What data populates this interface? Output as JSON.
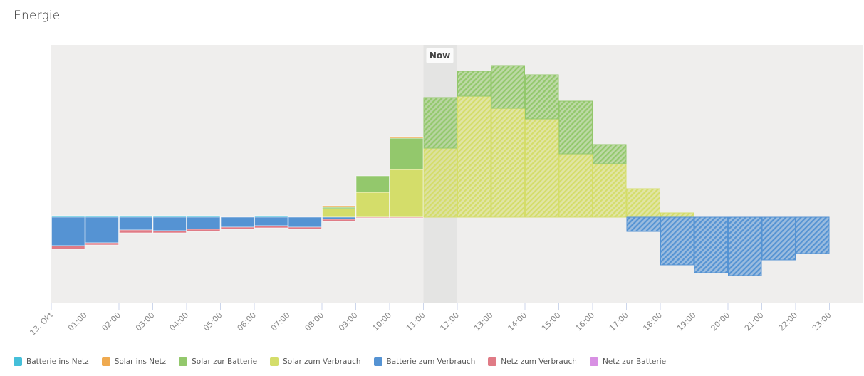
{
  "title": "Energie",
  "chart_data": {
    "type": "bar",
    "stacked": true,
    "title": "Energie",
    "xlabel": "",
    "ylabel": "",
    "grid": false,
    "legend_position": "bottom-left",
    "categories": [
      "13. Okt",
      "01:00",
      "02:00",
      "03:00",
      "04:00",
      "05:00",
      "06:00",
      "07:00",
      "08:00",
      "09:00",
      "10:00",
      "11:00",
      "12:00",
      "13:00",
      "14:00",
      "15:00",
      "16:00",
      "17:00",
      "18:00",
      "19:00",
      "20:00",
      "21:00",
      "22:00"
    ],
    "tick_labels": [
      "13. Okt",
      "01:00",
      "02:00",
      "03:00",
      "04:00",
      "05:00",
      "06:00",
      "07:00",
      "08:00",
      "09:00",
      "10:00",
      "11:00",
      "12:00",
      "13:00",
      "14:00",
      "15:00",
      "16:00",
      "17:00",
      "18:00",
      "19:00",
      "20:00",
      "21:00",
      "22:00",
      "23:00"
    ],
    "now_label": "Now",
    "now_index": 11,
    "forecast_from_index": 11,
    "ylim": [
      -1.2,
      2.4
    ],
    "series": [
      {
        "name": "Solar zum Verbrauch",
        "key": "solar_self",
        "color": "#d4dd6a",
        "values": [
          0,
          0,
          0,
          0,
          0,
          0,
          0,
          0,
          0.12,
          0.35,
          0.67,
          0.97,
          1.7,
          1.53,
          1.38,
          0.89,
          0.75,
          0.4,
          0.06,
          0,
          0,
          0,
          0
        ]
      },
      {
        "name": "Solar zur Batterie",
        "key": "solar_batt",
        "color": "#93c86c",
        "values": [
          0,
          0,
          0,
          0,
          0,
          0,
          0,
          0,
          0.02,
          0.23,
          0.44,
          0.71,
          0.35,
          0.6,
          0.62,
          0.74,
          0.27,
          0,
          0,
          0,
          0,
          0,
          0
        ]
      },
      {
        "name": "Solar ins Netz",
        "key": "solar_grid",
        "color": "#efaa50",
        "values": [
          0,
          0,
          0,
          0,
          0,
          0,
          0,
          0,
          0.02,
          0,
          0.02,
          0,
          0,
          0,
          0,
          0,
          0,
          0,
          0,
          0,
          0,
          0,
          0
        ]
      },
      {
        "name": "Batterie ins Netz",
        "key": "batt_grid",
        "color": "#45bfd9",
        "values": [
          0.02,
          0.02,
          0.02,
          0.02,
          0.02,
          0,
          0.02,
          0,
          0,
          0,
          0,
          0,
          0,
          0,
          0,
          0,
          0,
          0,
          0,
          0,
          0,
          0,
          0
        ]
      },
      {
        "name": "Batterie zum Verbrauch",
        "key": "batt_self",
        "color": "#5593d3",
        "values": [
          -0.4,
          -0.36,
          -0.18,
          -0.19,
          -0.17,
          -0.14,
          -0.12,
          -0.14,
          -0.03,
          0,
          0,
          0,
          0,
          0,
          0,
          0,
          0,
          -0.2,
          -0.67,
          -0.78,
          -0.82,
          -0.6,
          -0.51
        ]
      },
      {
        "name": "Netz zum Verbrauch",
        "key": "grid_self",
        "color": "#e07b86",
        "values": [
          -0.05,
          -0.03,
          -0.04,
          -0.03,
          -0.03,
          -0.03,
          -0.03,
          -0.03,
          -0.03,
          -0.01,
          -0.01,
          0,
          0,
          0,
          0,
          0,
          0,
          0,
          0,
          0,
          0,
          0,
          0
        ]
      },
      {
        "name": "Netz zur Batterie",
        "key": "grid_batt",
        "color": "#d890e3",
        "values": [
          0,
          0,
          0,
          0,
          0,
          0,
          0,
          0,
          0,
          0,
          0,
          0,
          0,
          0,
          0,
          0,
          0,
          0,
          0,
          0,
          0,
          0,
          0
        ]
      }
    ]
  },
  "legend": [
    {
      "label": "Batterie ins Netz",
      "color": "#45bfd9"
    },
    {
      "label": "Solar ins Netz",
      "color": "#efaa50"
    },
    {
      "label": "Solar zur Batterie",
      "color": "#93c86c"
    },
    {
      "label": "Solar zum Verbrauch",
      "color": "#d4dd6a"
    },
    {
      "label": "Batterie zum Verbrauch",
      "color": "#5593d3"
    },
    {
      "label": "Netz zum Verbrauch",
      "color": "#e07b86"
    },
    {
      "label": "Netz zur Batterie",
      "color": "#d890e3"
    }
  ]
}
